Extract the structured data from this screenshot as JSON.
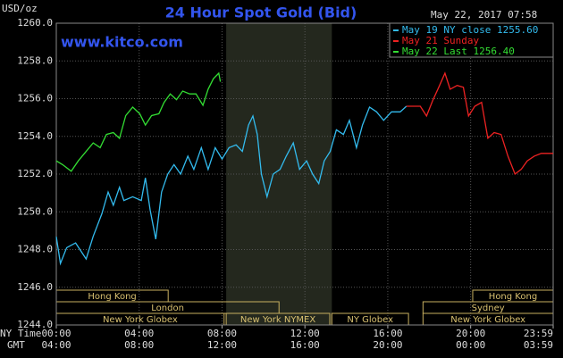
{
  "chart_data": {
    "type": "line",
    "title": "24 Hour Spot Gold (Bid)",
    "subtitle": "www.kitco.com",
    "timestamp": "May 22, 2017 07:58",
    "y_label": "USD/oz",
    "x_label": "NY Time",
    "x2_label": "GMT",
    "xlim": [
      0,
      23.983
    ],
    "ylim": [
      1244,
      1260
    ],
    "yticks": [
      {
        "value": 1244,
        "label": "1244.0"
      },
      {
        "value": 1246,
        "label": "1246.0"
      },
      {
        "value": 1248,
        "label": "1248.0"
      },
      {
        "value": 1250,
        "label": "1250.0"
      },
      {
        "value": 1252,
        "label": "1252.0"
      },
      {
        "value": 1254,
        "label": "1254.0"
      },
      {
        "value": 1256,
        "label": "1256.0"
      },
      {
        "value": 1258,
        "label": "1258.0"
      },
      {
        "value": 1260,
        "label": "1260.0"
      }
    ],
    "xticks": [
      {
        "value": 0,
        "label": "00:00"
      },
      {
        "value": 4,
        "label": "04:00"
      },
      {
        "value": 8,
        "label": "08:00"
      },
      {
        "value": 12,
        "label": "12:00"
      },
      {
        "value": 16,
        "label": "16:00"
      },
      {
        "value": 20,
        "label": "20:00"
      },
      {
        "value": 23.983,
        "label": "23:59"
      }
    ],
    "x2ticks": [
      {
        "value": 0,
        "label": "04:00"
      },
      {
        "value": 4,
        "label": "08:00"
      },
      {
        "value": 8,
        "label": "12:00"
      },
      {
        "value": 12,
        "label": "16:00"
      },
      {
        "value": 16,
        "label": "20:00"
      },
      {
        "value": 20,
        "label": "00:00"
      },
      {
        "value": 23.983,
        "label": "03:59"
      }
    ],
    "grid": true,
    "shaded_range": [
      8.2,
      13.3
    ],
    "session_lanes": [
      [
        {
          "label": "Hong Kong",
          "start": 0,
          "end": 5.4
        },
        {
          "label": "Hong Kong",
          "start": 20.1,
          "end": 23.983
        }
      ],
      [
        {
          "label": "London",
          "start": 0,
          "end": 10.75
        },
        {
          "label": "Sydney",
          "start": 17.7,
          "end": 23.983
        }
      ],
      [
        {
          "label": "New York Globex",
          "start": 0,
          "end": 8.1
        },
        {
          "label": "New York NYMEX",
          "start": 8.2,
          "end": 13.2
        },
        {
          "label": "NY Globex",
          "start": 13.3,
          "end": 17
        },
        {
          "label": "New York Globex",
          "start": 17.7,
          "end": 23.983
        }
      ]
    ],
    "series": [
      {
        "name": "May 19 NY close 1255.60",
        "color": "#33bbee",
        "x": [
          0,
          0.2,
          0.5,
          0.93,
          1.44,
          1.78,
          2.2,
          2.5,
          2.75,
          3.05,
          3.26,
          3.69,
          4.1,
          4.3,
          4.53,
          4.8,
          5.08,
          5.38,
          5.68,
          6.0,
          6.35,
          6.64,
          7.0,
          7.33,
          7.67,
          8.0,
          8.34,
          8.68,
          8.98,
          9.28,
          9.49,
          9.7,
          9.9,
          10.17,
          10.47,
          10.8,
          11.1,
          11.44,
          11.74,
          12.08,
          12.37,
          12.67,
          12.93,
          13.22,
          13.52,
          13.86,
          14.15,
          14.49,
          14.78,
          15.12,
          15.46,
          15.8,
          16.18,
          16.6,
          16.9
        ],
        "values": [
          1248.68,
          1247.26,
          1248.1,
          1248.35,
          1247.5,
          1248.7,
          1249.9,
          1251.05,
          1250.35,
          1251.3,
          1250.6,
          1250.8,
          1250.6,
          1251.8,
          1250.1,
          1248.55,
          1251.05,
          1252.0,
          1252.5,
          1252.0,
          1252.95,
          1252.25,
          1253.4,
          1252.25,
          1253.4,
          1252.8,
          1253.4,
          1253.55,
          1253.2,
          1254.6,
          1255.08,
          1254.1,
          1252.0,
          1250.8,
          1252.0,
          1252.25,
          1252.95,
          1253.65,
          1252.25,
          1252.7,
          1252.0,
          1251.5,
          1252.7,
          1253.2,
          1254.35,
          1254.1,
          1254.85,
          1253.4,
          1254.6,
          1255.55,
          1255.3,
          1254.85,
          1255.3,
          1255.3,
          1255.6
        ]
      },
      {
        "name": "May 21 Sunday",
        "color": "#ee2222",
        "x": [
          16.9,
          17.57,
          17.87,
          18.17,
          18.5,
          18.76,
          19.01,
          19.35,
          19.65,
          19.9,
          20.2,
          20.53,
          20.83,
          21.13,
          21.47,
          21.8,
          22.14,
          22.44,
          22.73,
          23.07,
          23.41,
          23.983
        ],
        "values": [
          1255.6,
          1255.6,
          1255.08,
          1255.9,
          1256.7,
          1257.35,
          1256.5,
          1256.7,
          1256.6,
          1255.08,
          1255.6,
          1255.8,
          1253.9,
          1254.2,
          1254.1,
          1252.95,
          1252.0,
          1252.25,
          1252.7,
          1252.95,
          1253.1,
          1253.1
        ]
      },
      {
        "name": "May 22 Last 1256.40",
        "color": "#33dd33",
        "x": [
          0,
          0.3,
          0.72,
          1.06,
          1.44,
          1.78,
          2.12,
          2.42,
          2.75,
          3.05,
          3.35,
          3.69,
          4.03,
          4.3,
          4.6,
          4.95,
          5.2,
          5.5,
          5.8,
          6.1,
          6.44,
          6.74,
          7.08,
          7.33,
          7.58,
          7.84,
          7.92
        ],
        "values": [
          1252.7,
          1252.5,
          1252.15,
          1252.7,
          1253.2,
          1253.65,
          1253.4,
          1254.1,
          1254.2,
          1253.9,
          1255.1,
          1255.55,
          1255.2,
          1254.6,
          1255.1,
          1255.2,
          1255.8,
          1256.25,
          1255.95,
          1256.4,
          1256.25,
          1256.25,
          1255.65,
          1256.5,
          1257.05,
          1257.35,
          1256.9
        ]
      }
    ]
  }
}
